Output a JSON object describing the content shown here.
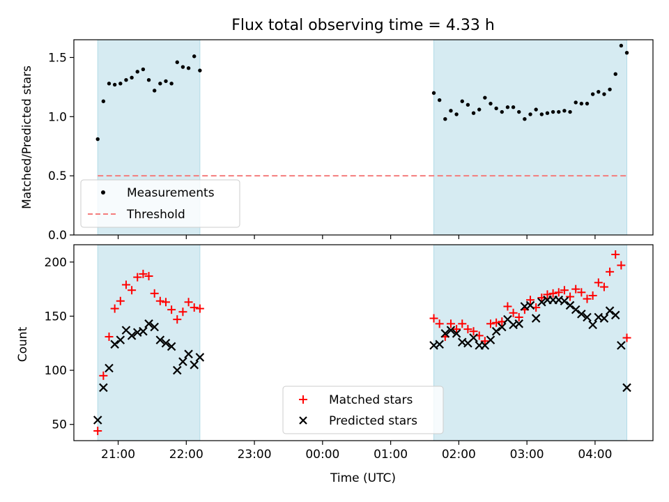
{
  "figure": {
    "title": "Flux total observing time = 4.33 h",
    "xlabel": "Time (UTC)",
    "x_ticks": [
      "21:00",
      "22:00",
      "23:00",
      "00:00",
      "01:00",
      "02:00",
      "03:00",
      "04:00"
    ]
  },
  "chart_data": [
    {
      "type": "scatter",
      "ylabel": "Matched/Predicted stars",
      "xlim_hours_after_midnight": [
        -3.65,
        4.85
      ],
      "ylim": [
        0.0,
        1.65
      ],
      "y_ticks": [
        "0.0",
        "0.5",
        "1.0",
        "1.5"
      ],
      "grid": false,
      "legend_position": "lower-left",
      "observing_windows_utc": [
        [
          "20:42",
          "22:12"
        ],
        [
          "01:38",
          "04:28"
        ]
      ],
      "threshold": {
        "name": "Threshold",
        "value": 0.5,
        "color": "#f47c7c",
        "style": "dashed",
        "x_range": [
          "20:42",
          "04:28"
        ]
      },
      "series": [
        {
          "name": "Measurements",
          "color": "#000000",
          "marker": "dot",
          "points": [
            [
              "20:42",
              0.81
            ],
            [
              "20:47",
              1.13
            ],
            [
              "20:52",
              1.28
            ],
            [
              "20:57",
              1.27
            ],
            [
              "21:02",
              1.28
            ],
            [
              "21:07",
              1.31
            ],
            [
              "21:12",
              1.33
            ],
            [
              "21:17",
              1.38
            ],
            [
              "21:22",
              1.4
            ],
            [
              "21:27",
              1.31
            ],
            [
              "21:32",
              1.22
            ],
            [
              "21:37",
              1.28
            ],
            [
              "21:42",
              1.3
            ],
            [
              "21:47",
              1.28
            ],
            [
              "21:52",
              1.46
            ],
            [
              "21:57",
              1.42
            ],
            [
              "22:02",
              1.41
            ],
            [
              "22:07",
              1.51
            ],
            [
              "22:12",
              1.39
            ],
            [
              "01:38",
              1.2
            ],
            [
              "01:43",
              1.14
            ],
            [
              "01:48",
              0.98
            ],
            [
              "01:53",
              1.05
            ],
            [
              "01:58",
              1.02
            ],
            [
              "02:03",
              1.13
            ],
            [
              "02:08",
              1.1
            ],
            [
              "02:13",
              1.03
            ],
            [
              "02:18",
              1.06
            ],
            [
              "02:23",
              1.16
            ],
            [
              "02:28",
              1.11
            ],
            [
              "02:33",
              1.07
            ],
            [
              "02:38",
              1.04
            ],
            [
              "02:43",
              1.08
            ],
            [
              "02:48",
              1.08
            ],
            [
              "02:53",
              1.04
            ],
            [
              "02:58",
              0.98
            ],
            [
              "03:03",
              1.02
            ],
            [
              "03:08",
              1.06
            ],
            [
              "03:13",
              1.02
            ],
            [
              "03:18",
              1.03
            ],
            [
              "03:23",
              1.04
            ],
            [
              "03:28",
              1.04
            ],
            [
              "03:33",
              1.05
            ],
            [
              "03:38",
              1.04
            ],
            [
              "03:43",
              1.12
            ],
            [
              "03:48",
              1.11
            ],
            [
              "03:53",
              1.11
            ],
            [
              "03:58",
              1.19
            ],
            [
              "04:03",
              1.21
            ],
            [
              "04:08",
              1.19
            ],
            [
              "04:13",
              1.23
            ],
            [
              "04:18",
              1.36
            ],
            [
              "04:23",
              1.6
            ],
            [
              "04:28",
              1.54
            ]
          ]
        }
      ]
    },
    {
      "type": "scatter",
      "ylabel": "Count",
      "xlim_hours_after_midnight": [
        -3.65,
        4.85
      ],
      "ylim": [
        35,
        216
      ],
      "y_ticks": [
        "50",
        "100",
        "150",
        "200"
      ],
      "grid": false,
      "legend_position": "bottom-center",
      "observing_windows_utc": [
        [
          "20:42",
          "22:12"
        ],
        [
          "01:38",
          "04:28"
        ]
      ],
      "series": [
        {
          "name": "Matched stars",
          "color": "#ff0000",
          "marker": "plus",
          "points": [
            [
              "20:42",
              44
            ],
            [
              "20:47",
              95
            ],
            [
              "20:52",
              131
            ],
            [
              "20:57",
              157
            ],
            [
              "21:02",
              164
            ],
            [
              "21:07",
              179
            ],
            [
              "21:12",
              174
            ],
            [
              "21:17",
              186
            ],
            [
              "21:22",
              189
            ],
            [
              "21:27",
              187
            ],
            [
              "21:32",
              171
            ],
            [
              "21:37",
              164
            ],
            [
              "21:42",
              163
            ],
            [
              "21:47",
              156
            ],
            [
              "21:52",
              147
            ],
            [
              "21:57",
              154
            ],
            [
              "22:02",
              163
            ],
            [
              "22:07",
              158
            ],
            [
              "22:12",
              157
            ],
            [
              "01:38",
              148
            ],
            [
              "01:43",
              143
            ],
            [
              "01:48",
              131
            ],
            [
              "01:53",
              143
            ],
            [
              "01:58",
              138
            ],
            [
              "02:03",
              143
            ],
            [
              "02:08",
              138
            ],
            [
              "02:13",
              136
            ],
            [
              "02:18",
              132
            ],
            [
              "02:23",
              127
            ],
            [
              "02:28",
              143
            ],
            [
              "02:33",
              144
            ],
            [
              "02:38",
              145
            ],
            [
              "02:43",
              159
            ],
            [
              "02:48",
              153
            ],
            [
              "02:53",
              149
            ],
            [
              "02:58",
              156
            ],
            [
              "03:03",
              165
            ],
            [
              "03:08",
              158
            ],
            [
              "03:13",
              167
            ],
            [
              "03:18",
              170
            ],
            [
              "03:23",
              171
            ],
            [
              "03:28",
              172
            ],
            [
              "03:33",
              174
            ],
            [
              "03:38",
              168
            ],
            [
              "03:43",
              175
            ],
            [
              "03:48",
              172
            ],
            [
              "03:53",
              166
            ],
            [
              "03:58",
              169
            ],
            [
              "04:03",
              181
            ],
            [
              "04:08",
              177
            ],
            [
              "04:13",
              191
            ],
            [
              "04:18",
              207
            ],
            [
              "04:23",
              197
            ],
            [
              "04:28",
              130
            ]
          ]
        },
        {
          "name": "Predicted stars",
          "color": "#000000",
          "marker": "x",
          "points": [
            [
              "20:42",
              54
            ],
            [
              "20:47",
              84
            ],
            [
              "20:52",
              102
            ],
            [
              "20:57",
              124
            ],
            [
              "21:02",
              128
            ],
            [
              "21:07",
              137
            ],
            [
              "21:12",
              132
            ],
            [
              "21:17",
              135
            ],
            [
              "21:22",
              136
            ],
            [
              "21:27",
              143
            ],
            [
              "21:32",
              140
            ],
            [
              "21:37",
              128
            ],
            [
              "21:42",
              125
            ],
            [
              "21:47",
              122
            ],
            [
              "21:52",
              100
            ],
            [
              "21:57",
              108
            ],
            [
              "22:02",
              115
            ],
            [
              "22:07",
              105
            ],
            [
              "22:12",
              112
            ],
            [
              "01:38",
              123
            ],
            [
              "01:43",
              124
            ],
            [
              "01:48",
              134
            ],
            [
              "01:53",
              137
            ],
            [
              "01:58",
              134
            ],
            [
              "02:03",
              126
            ],
            [
              "02:08",
              125
            ],
            [
              "02:13",
              130
            ],
            [
              "02:18",
              123
            ],
            [
              "02:23",
              123
            ],
            [
              "02:28",
              128
            ],
            [
              "02:33",
              136
            ],
            [
              "02:38",
              140
            ],
            [
              "02:43",
              147
            ],
            [
              "02:48",
              142
            ],
            [
              "02:53",
              143
            ],
            [
              "02:58",
              159
            ],
            [
              "03:03",
              160
            ],
            [
              "03:08",
              148
            ],
            [
              "03:13",
              163
            ],
            [
              "03:18",
              165
            ],
            [
              "03:23",
              165
            ],
            [
              "03:28",
              165
            ],
            [
              "03:33",
              164
            ],
            [
              "03:38",
              160
            ],
            [
              "03:43",
              156
            ],
            [
              "03:48",
              152
            ],
            [
              "03:53",
              149
            ],
            [
              "03:58",
              142
            ],
            [
              "04:03",
              149
            ],
            [
              "04:08",
              148
            ],
            [
              "04:13",
              155
            ],
            [
              "04:18",
              151
            ],
            [
              "04:23",
              123
            ],
            [
              "04:28",
              84
            ]
          ]
        }
      ]
    }
  ]
}
